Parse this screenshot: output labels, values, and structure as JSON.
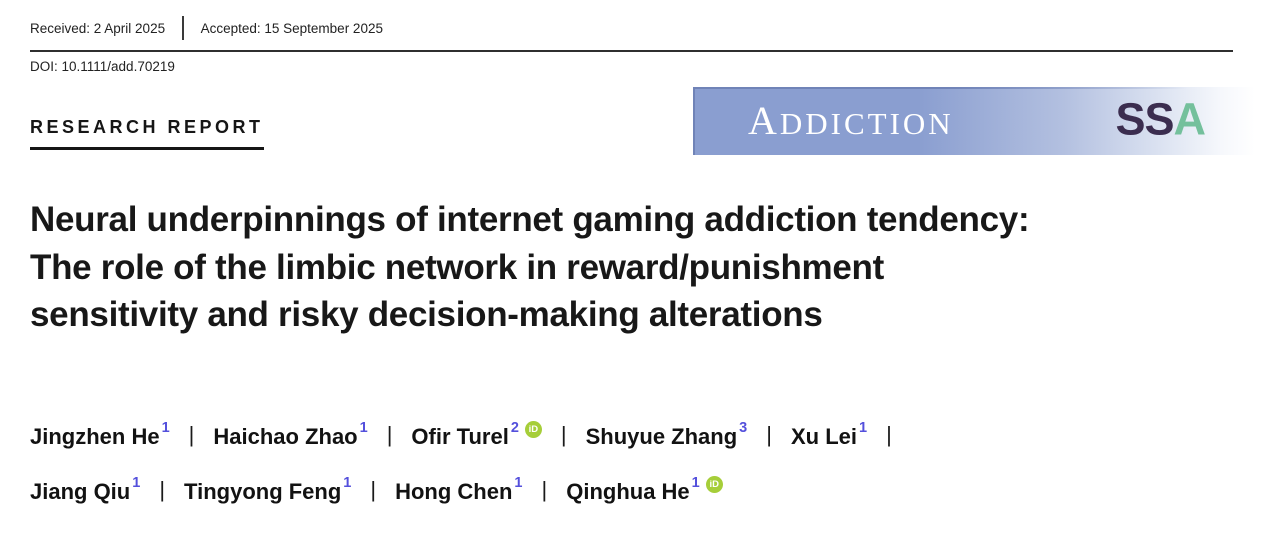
{
  "header": {
    "received": "Received: 2 April 2025",
    "accepted": "Accepted: 15 September 2025",
    "doi": "DOI: 10.1111/add.70219"
  },
  "article_type": "RESEARCH REPORT",
  "banner": {
    "journal_name": "ADDICTION",
    "logo": {
      "ss": "SS",
      "a": "A"
    }
  },
  "title_lines": [
    "Neural underpinnings of internet gaming addiction tendency:",
    "The role of the limbic network in reward/punishment",
    "sensitivity and risky decision-making alterations"
  ],
  "authors": {
    "separator": "|",
    "orcid_label": "iD",
    "rows": [
      {
        "trailing_separator": true,
        "items": [
          {
            "name": "Jingzhen He",
            "sup": "1",
            "orcid": false
          },
          {
            "name": "Haichao Zhao",
            "sup": "1",
            "orcid": false
          },
          {
            "name": "Ofir Turel",
            "sup": "2",
            "orcid": true
          },
          {
            "name": "Shuyue Zhang",
            "sup": "3",
            "orcid": false
          },
          {
            "name": "Xu Lei",
            "sup": "1",
            "orcid": false
          }
        ]
      },
      {
        "trailing_separator": false,
        "items": [
          {
            "name": "Jiang Qiu",
            "sup": "1",
            "orcid": false
          },
          {
            "name": "Tingyong Feng",
            "sup": "1",
            "orcid": false
          },
          {
            "name": "Hong Chen",
            "sup": "1",
            "orcid": false
          },
          {
            "name": "Qinghua He",
            "sup": "1",
            "orcid": true
          }
        ]
      }
    ]
  },
  "colors": {
    "banner_blue": "#8a9ed0",
    "logo_ss": "#3b2d4f",
    "logo_a": "#74c09c",
    "sup_color": "#5450dc",
    "orcid_green": "#a6ce39",
    "rule_color": "#2f2f2f",
    "text_color": "#1b1b1b"
  }
}
